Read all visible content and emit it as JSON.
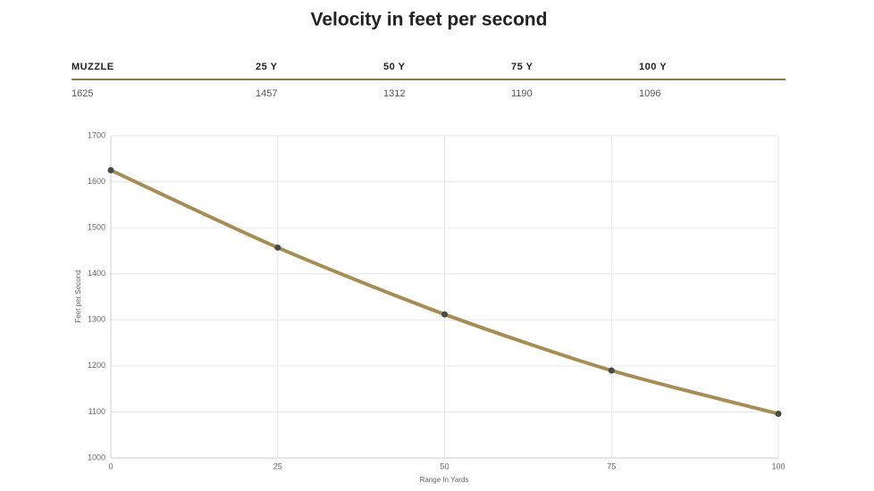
{
  "title": "Velocity in feet per second",
  "table": {
    "headers": [
      "MUZZLE",
      "25 Y",
      "50 Y",
      "75 Y",
      "100 Y"
    ],
    "rows": [
      [
        1625,
        1457,
        1312,
        1190,
        1096
      ]
    ]
  },
  "chart_data": {
    "type": "line",
    "x_label": "Range In Yards",
    "y_label": "Feet per Second",
    "x": [
      0,
      25,
      50,
      75,
      100
    ],
    "series": [
      {
        "color": "#a68d55",
        "point_color": "#4a4a44",
        "values": [
          1625,
          1457,
          1312,
          1190,
          1096
        ]
      }
    ],
    "xlim": [
      0,
      100
    ],
    "xticks": [
      0,
      25,
      50,
      75,
      100
    ],
    "ylim": [
      1000,
      1700
    ],
    "yticks": [
      1000,
      1100,
      1200,
      1300,
      1400,
      1500,
      1600,
      1700
    ],
    "grid": true
  }
}
